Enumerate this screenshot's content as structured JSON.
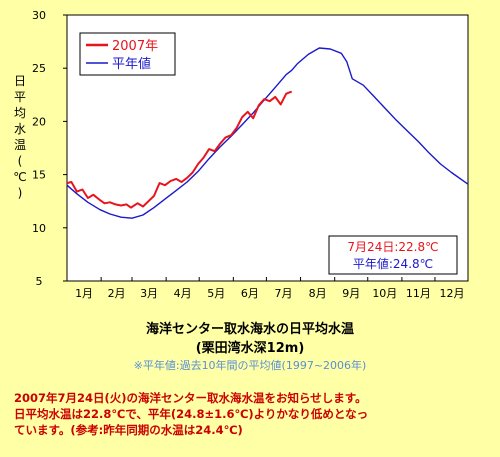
{
  "chart_data": {
    "type": "line",
    "title": "海洋センター取水海水の日平均水温",
    "subtitle": "(栗田湾水深12m)",
    "note": "※平年値:過去10年間の平均値(1997~2006年)",
    "ylabel": "日平均水温(℃)",
    "ylim": [
      5,
      30
    ],
    "yticks": [
      5,
      10,
      15,
      20,
      25,
      30
    ],
    "xticks": [
      "1月",
      "2月",
      "3月",
      "4月",
      "5月",
      "6月",
      "7月",
      "8月",
      "9月",
      "10月",
      "11月",
      "12月"
    ],
    "xlim": [
      1,
      365
    ],
    "legend_position": "top-left",
    "series": [
      {
        "name": "2007年",
        "color": "#e8141c",
        "x": [
          1,
          5,
          10,
          15,
          20,
          25,
          31,
          35,
          40,
          45,
          50,
          55,
          59,
          65,
          70,
          75,
          80,
          85,
          90,
          95,
          100,
          105,
          110,
          115,
          120,
          125,
          130,
          135,
          140,
          145,
          150,
          155,
          160,
          165,
          170,
          175,
          180,
          185,
          190,
          195,
          200,
          205
        ],
        "y": [
          14.2,
          14.3,
          13.4,
          13.6,
          12.8,
          13.1,
          12.6,
          12.3,
          12.4,
          12.2,
          12.1,
          12.2,
          11.9,
          12.3,
          12.0,
          12.5,
          13.0,
          14.2,
          14.0,
          14.4,
          14.6,
          14.3,
          14.7,
          15.2,
          16.0,
          16.6,
          17.4,
          17.2,
          17.9,
          18.5,
          18.7,
          19.4,
          20.4,
          20.9,
          20.3,
          21.5,
          22.1,
          21.9,
          22.3,
          21.6,
          22.6,
          22.8
        ]
      },
      {
        "name": "平年値",
        "color": "#1a1acc",
        "x": [
          1,
          10,
          20,
          31,
          40,
          50,
          60,
          70,
          80,
          90,
          100,
          110,
          120,
          130,
          140,
          150,
          160,
          170,
          180,
          190,
          200,
          205,
          210,
          220,
          230,
          240,
          250,
          255,
          260,
          270,
          280,
          290,
          300,
          310,
          320,
          330,
          340,
          350,
          365
        ],
        "y": [
          14.0,
          13.2,
          12.4,
          11.7,
          11.3,
          11.0,
          10.9,
          11.2,
          11.9,
          12.7,
          13.5,
          14.3,
          15.3,
          16.5,
          17.6,
          18.6,
          19.7,
          20.8,
          22.0,
          23.2,
          24.4,
          24.8,
          25.4,
          26.3,
          26.9,
          26.8,
          26.4,
          25.6,
          24.0,
          23.4,
          22.3,
          21.2,
          20.1,
          19.1,
          18.1,
          17.0,
          16.0,
          15.2,
          14.1
        ]
      }
    ],
    "annotation": {
      "date_label": "7月24日:22.8℃",
      "normal_label": "平年値:24.8℃"
    }
  },
  "message": {
    "line1": "2007年7月24日(火)の海洋センター取水海水温をお知らせします。",
    "line2": "日平均水温は22.8℃で、平年(24.8±1.6℃)よりかなり低めとなっ",
    "line3": "ています。(参考:昨年同期の水温は24.4℃)"
  }
}
